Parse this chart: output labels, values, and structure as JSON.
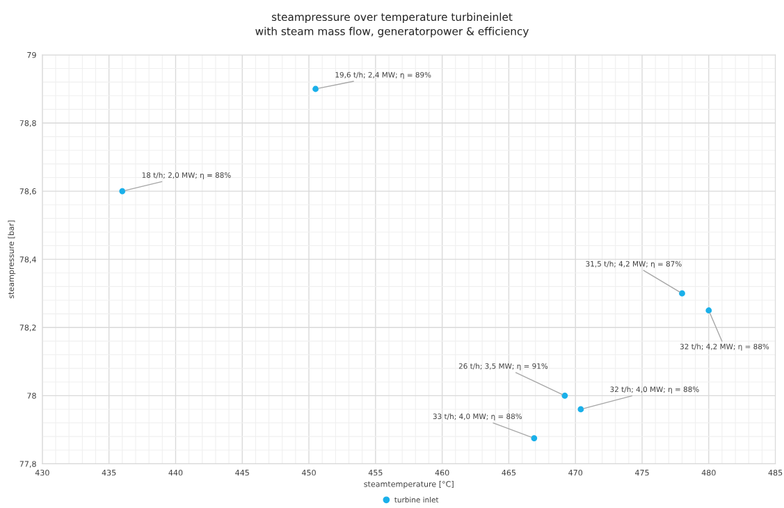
{
  "chart_data": {
    "type": "scatter",
    "title": "steampressure over temperature turbineinlet",
    "subtitle": "with steam mass flow, generatorpower & efficiency",
    "xlabel": "steamtemperature [°C]",
    "ylabel": "steampressure [bar]",
    "series": [
      {
        "name": "turbine inlet",
        "color": "#1ab0ea",
        "x": [
          436,
          450.5,
          478,
          480,
          469.2,
          470.4,
          466.9
        ],
        "values": [
          78.6,
          78.9,
          78.3,
          78.25,
          78.0,
          77.96,
          77.875
        ]
      }
    ],
    "annotations": [
      {
        "text": "18 t/h; 2,0 MW; η = 88%",
        "x": 436,
        "y": 78.6
      },
      {
        "text": "19,6 t/h; 2,4 MW; η = 89%",
        "x": 450.5,
        "y": 78.9
      },
      {
        "text": "31,5 t/h; 4,2 MW; η = 87%",
        "x": 478,
        "y": 78.3
      },
      {
        "text": "32 t/h; 4,2 MW; η = 88%",
        "x": 480,
        "y": 78.25
      },
      {
        "text": "26 t/h; 3,5 MW; η = 91%",
        "x": 469.2,
        "y": 78.0
      },
      {
        "text": "32 t/h; 4,0 MW; η = 88%",
        "x": 470.4,
        "y": 77.96
      },
      {
        "text": "33 t/h; 4,0 MW; η = 88%",
        "x": 466.9,
        "y": 77.875
      }
    ],
    "xlim": [
      430,
      485
    ],
    "xticks": [
      430,
      435,
      440,
      445,
      450,
      455,
      460,
      465,
      470,
      475,
      480,
      485
    ],
    "ylim": [
      77.8,
      79
    ],
    "yticks": [
      {
        "value": 77.8,
        "label": "77,8"
      },
      {
        "value": 78.0,
        "label": "78"
      },
      {
        "value": 78.2,
        "label": "78,2"
      },
      {
        "value": 78.4,
        "label": "78,4"
      },
      {
        "value": 78.6,
        "label": "78,6"
      },
      {
        "value": 78.8,
        "label": "78,8"
      },
      {
        "value": 79,
        "label": "79"
      }
    ],
    "grid": true,
    "legend": "bottom",
    "marker": "circle"
  }
}
